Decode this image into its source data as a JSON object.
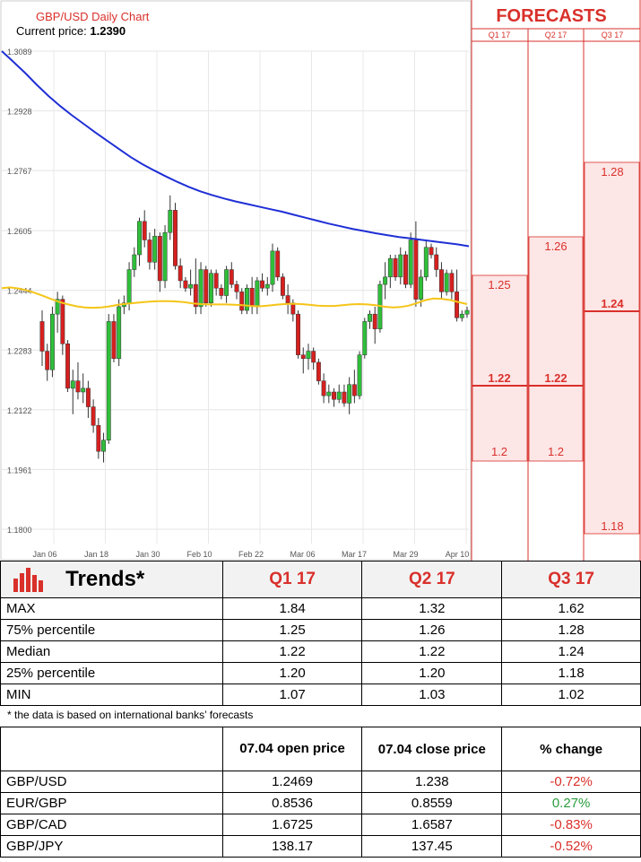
{
  "chart_title": "GBP/USD Daily Chart",
  "current_price_label": "Current price:",
  "current_price": "1.2390",
  "forecasts_title": "FORECASTS",
  "quarters": [
    "Q1 17",
    "Q2 17",
    "Q3 17"
  ],
  "chart_data": {
    "type": "candlestick",
    "ylim": [
      1.18,
      1.3089
    ],
    "y_ticks": [
      "1.3089",
      "1.2928",
      "1.2767",
      "1.2605",
      "1.2444",
      "1.2283",
      "1.2122",
      "1.1961",
      "1.1800"
    ],
    "x_ticks": [
      "Jan 06",
      "Jan 18",
      "Jan 30",
      "Feb 10",
      "Feb 22",
      "Mar 06",
      "Mar 17",
      "Mar 29",
      "Apr 10"
    ],
    "series": [
      {
        "name": "ma_fast",
        "color": "#f5c518"
      },
      {
        "name": "ma_slow",
        "color": "#1f2fd6"
      }
    ],
    "candles_ohlc": [
      [
        1.236,
        1.239,
        1.224,
        1.228
      ],
      [
        1.228,
        1.23,
        1.22,
        1.223
      ],
      [
        1.223,
        1.24,
        1.221,
        1.238
      ],
      [
        1.238,
        1.244,
        1.233,
        1.242
      ],
      [
        1.242,
        1.243,
        1.227,
        1.23
      ],
      [
        1.23,
        1.231,
        1.217,
        1.218
      ],
      [
        1.218,
        1.223,
        1.211,
        1.22
      ],
      [
        1.22,
        1.225,
        1.215,
        1.217
      ],
      [
        1.217,
        1.222,
        1.214,
        1.218
      ],
      [
        1.218,
        1.22,
        1.21,
        1.213
      ],
      [
        1.213,
        1.215,
        1.206,
        1.208
      ],
      [
        1.208,
        1.21,
        1.199,
        1.201
      ],
      [
        1.201,
        1.206,
        1.198,
        1.204
      ],
      [
        1.204,
        1.238,
        1.203,
        1.236
      ],
      [
        1.236,
        1.238,
        1.225,
        1.226
      ],
      [
        1.226,
        1.242,
        1.224,
        1.24
      ],
      [
        1.24,
        1.243,
        1.238,
        1.241
      ],
      [
        1.241,
        1.252,
        1.239,
        1.25
      ],
      [
        1.25,
        1.256,
        1.248,
        1.254
      ],
      [
        1.254,
        1.264,
        1.251,
        1.263
      ],
      [
        1.263,
        1.266,
        1.256,
        1.258
      ],
      [
        1.258,
        1.26,
        1.25,
        1.252
      ],
      [
        1.252,
        1.261,
        1.25,
        1.259
      ],
      [
        1.259,
        1.26,
        1.244,
        1.247
      ],
      [
        1.247,
        1.262,
        1.245,
        1.26
      ],
      [
        1.26,
        1.27,
        1.258,
        1.266
      ],
      [
        1.266,
        1.268,
        1.25,
        1.251
      ],
      [
        1.251,
        1.253,
        1.245,
        1.247
      ],
      [
        1.247,
        1.248,
        1.244,
        1.245
      ],
      [
        1.245,
        1.25,
        1.243,
        1.246
      ],
      [
        1.246,
        1.253,
        1.238,
        1.24
      ],
      [
        1.24,
        1.252,
        1.238,
        1.25
      ],
      [
        1.25,
        1.251,
        1.24,
        1.241
      ],
      [
        1.241,
        1.25,
        1.24,
        1.249
      ],
      [
        1.249,
        1.25,
        1.243,
        1.245
      ],
      [
        1.245,
        1.246,
        1.242,
        1.243
      ],
      [
        1.243,
        1.251,
        1.241,
        1.25
      ],
      [
        1.25,
        1.252,
        1.245,
        1.246
      ],
      [
        1.246,
        1.247,
        1.242,
        1.244
      ],
      [
        1.244,
        1.245,
        1.238,
        1.239
      ],
      [
        1.239,
        1.246,
        1.238,
        1.245
      ],
      [
        1.245,
        1.248,
        1.238,
        1.24
      ],
      [
        1.24,
        1.248,
        1.238,
        1.247
      ],
      [
        1.247,
        1.249,
        1.244,
        1.245
      ],
      [
        1.245,
        1.248,
        1.243,
        1.246
      ],
      [
        1.246,
        1.257,
        1.244,
        1.255
      ],
      [
        1.255,
        1.256,
        1.247,
        1.248
      ],
      [
        1.248,
        1.249,
        1.242,
        1.243
      ],
      [
        1.243,
        1.246,
        1.238,
        1.241
      ],
      [
        1.241,
        1.242,
        1.236,
        1.238
      ],
      [
        1.238,
        1.239,
        1.226,
        1.227
      ],
      [
        1.227,
        1.229,
        1.222,
        1.226
      ],
      [
        1.226,
        1.23,
        1.223,
        1.228
      ],
      [
        1.228,
        1.229,
        1.223,
        1.225
      ],
      [
        1.225,
        1.226,
        1.219,
        1.22
      ],
      [
        1.22,
        1.222,
        1.214,
        1.216
      ],
      [
        1.216,
        1.219,
        1.214,
        1.217
      ],
      [
        1.217,
        1.218,
        1.213,
        1.215
      ],
      [
        1.215,
        1.219,
        1.214,
        1.217
      ],
      [
        1.217,
        1.219,
        1.213,
        1.214
      ],
      [
        1.214,
        1.221,
        1.211,
        1.219
      ],
      [
        1.219,
        1.223,
        1.214,
        1.216
      ],
      [
        1.216,
        1.228,
        1.215,
        1.227
      ],
      [
        1.227,
        1.237,
        1.226,
        1.236
      ],
      [
        1.236,
        1.239,
        1.234,
        1.238
      ],
      [
        1.238,
        1.24,
        1.23,
        1.234
      ],
      [
        1.234,
        1.247,
        1.233,
        1.246
      ],
      [
        1.246,
        1.252,
        1.242,
        1.248
      ],
      [
        1.248,
        1.254,
        1.245,
        1.253
      ],
      [
        1.253,
        1.254,
        1.247,
        1.248
      ],
      [
        1.248,
        1.256,
        1.246,
        1.254
      ],
      [
        1.254,
        1.255,
        1.245,
        1.246
      ],
      [
        1.246,
        1.26,
        1.245,
        1.258
      ],
      [
        1.258,
        1.263,
        1.24,
        1.242
      ],
      [
        1.242,
        1.25,
        1.24,
        1.248
      ],
      [
        1.248,
        1.258,
        1.247,
        1.256
      ],
      [
        1.256,
        1.257,
        1.253,
        1.254
      ],
      [
        1.254,
        1.256,
        1.248,
        1.25
      ],
      [
        1.25,
        1.252,
        1.242,
        1.244
      ],
      [
        1.244,
        1.25,
        1.243,
        1.249
      ],
      [
        1.249,
        1.25,
        1.242,
        1.244
      ],
      [
        1.244,
        1.25,
        1.236,
        1.237
      ],
      [
        1.237,
        1.239,
        1.236,
        1.238
      ],
      [
        1.238,
        1.24,
        1.237,
        1.239
      ]
    ],
    "ma_fast_values": [
      1.245,
      1.2452,
      1.2449,
      1.2444,
      1.2437,
      1.2429,
      1.242,
      1.2412,
      1.2406,
      1.2401,
      1.2398,
      1.2397,
      1.2398,
      1.2401,
      1.2405,
      1.2408,
      1.241,
      1.2412,
      1.2414,
      1.2415,
      1.2415,
      1.2414,
      1.2412,
      1.2409,
      1.2407,
      1.2406,
      1.2406,
      1.2406,
      1.2405,
      1.2404,
      1.2402,
      1.2401,
      1.2403,
      1.2405,
      1.2407,
      1.2408,
      1.2407,
      1.2405,
      1.2403,
      1.2402,
      1.2402,
      1.2404,
      1.2406,
      1.2407,
      1.2406,
      1.2404,
      1.24,
      1.2398,
      1.2399,
      1.2403,
      1.241,
      1.2418,
      1.2422,
      1.2421,
      1.2418,
      1.2412,
      1.2407
    ],
    "ma_slow_values": [
      1.3089,
      1.306,
      1.303,
      1.2998,
      1.2968,
      1.2941,
      1.2916,
      1.2893,
      1.287,
      1.2848,
      1.2826,
      1.2804,
      1.2785,
      1.2768,
      1.2752,
      1.2737,
      1.2723,
      1.2711,
      1.2701,
      1.2692,
      1.2684,
      1.2677,
      1.267,
      1.2663,
      1.2656,
      1.2648,
      1.264,
      1.2632,
      1.2624,
      1.2617,
      1.261,
      1.2604,
      1.2598,
      1.2593,
      1.2588,
      1.2584,
      1.258,
      1.2576,
      1.2572,
      1.2568,
      1.2563
    ],
    "forecast_levels": [
      {
        "quarter": "Q1 17",
        "values": [
          "1.25",
          "1.22",
          "1.2"
        ]
      },
      {
        "quarter": "Q2 17",
        "values": [
          "1.26",
          "1.22",
          "1.2"
        ]
      },
      {
        "quarter": "Q3 17",
        "values": [
          "1.28",
          "1.24",
          "1.18"
        ]
      }
    ]
  },
  "trends": {
    "title": "Trends*",
    "rows": [
      {
        "label": "MAX",
        "values": [
          "1.84",
          "1.32",
          "1.62"
        ]
      },
      {
        "label": "75% percentile",
        "values": [
          "1.25",
          "1.26",
          "1.28"
        ]
      },
      {
        "label": "Median",
        "values": [
          "1.22",
          "1.22",
          "1.24"
        ]
      },
      {
        "label": "25% percentile",
        "values": [
          "1.20",
          "1.20",
          "1.18"
        ]
      },
      {
        "label": "MIN",
        "values": [
          "1.07",
          "1.03",
          "1.02"
        ]
      }
    ],
    "footnote": "* the data is based on international banks’ forecasts"
  },
  "prices": {
    "headers": [
      "",
      "07.04 open price",
      "07.04 close price",
      "% change"
    ],
    "rows": [
      {
        "pair": "GBP/USD",
        "open": "1.2469",
        "close": "1.238",
        "change": "-0.72%",
        "dir": "neg"
      },
      {
        "pair": "EUR/GBP",
        "open": "0.8536",
        "close": "0.8559",
        "change": "0.27%",
        "dir": "pos"
      },
      {
        "pair": "GBP/CAD",
        "open": "1.6725",
        "close": "1.6587",
        "change": "-0.83%",
        "dir": "neg"
      },
      {
        "pair": "GBP/JPY",
        "open": "138.17",
        "close": "137.45",
        "change": "-0.52%",
        "dir": "neg"
      }
    ]
  }
}
